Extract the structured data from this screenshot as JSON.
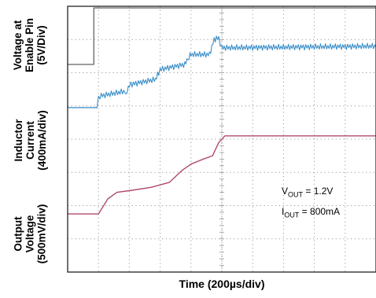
{
  "chart_data": {
    "type": "line",
    "title": "",
    "xlabel": "Time (200µs/div)",
    "x_divisions": 10,
    "y_divisions": 8,
    "panels": [
      {
        "label_lines": [
          "Voltage at",
          "Enable Pin",
          "(5V/Div)"
        ],
        "series": {
          "name": "Voltage at Enable Pin",
          "color": "#707070",
          "unit": "V",
          "scale_per_div": 5,
          "x_div": [
            0,
            0.85,
            0.85,
            10
          ],
          "y_div_from_top": [
            1.75,
            1.75,
            0.05,
            0.05
          ]
        }
      },
      {
        "label_lines": [
          "Inductor",
          "Current",
          "(400mA/div)"
        ],
        "series": {
          "name": "Inductor Current",
          "color": "#3a8fc8",
          "unit": "mA",
          "scale_per_div": 400,
          "x_div": [
            0,
            0.95,
            1.0,
            1.05,
            1.9,
            2.0,
            2.05,
            2.85,
            2.95,
            3.0,
            3.8,
            3.9,
            4.0,
            4.6,
            4.75,
            4.9,
            5.0,
            10
          ],
          "y_div_from_top": [
            3.05,
            3.05,
            2.75,
            2.7,
            2.55,
            2.4,
            2.35,
            2.2,
            2.0,
            1.9,
            1.75,
            1.55,
            1.45,
            1.45,
            1.0,
            0.95,
            1.25,
            1.2
          ],
          "ripple_div": 0.18
        }
      },
      {
        "label_lines": [
          "Output",
          "Voltage",
          "(500mV/div)"
        ],
        "series": {
          "name": "Output Voltage",
          "color": "#b04a6e",
          "unit": "mV",
          "scale_per_div": 500,
          "x_div": [
            0,
            1.0,
            1.3,
            1.6,
            2.0,
            2.7,
            3.3,
            3.7,
            4.0,
            4.4,
            4.7,
            4.9,
            5.1,
            10
          ],
          "y_div_from_top": [
            6.25,
            6.25,
            5.8,
            5.6,
            5.55,
            5.45,
            5.3,
            4.95,
            4.75,
            4.6,
            4.5,
            4.1,
            3.9,
            3.9
          ]
        }
      }
    ],
    "annotations": [
      {
        "var": "V",
        "sub": "OUT",
        "text": " = 1.2V"
      },
      {
        "var": "I",
        "sub": "OUT",
        "text": " = 800mA"
      }
    ],
    "grid": true
  }
}
